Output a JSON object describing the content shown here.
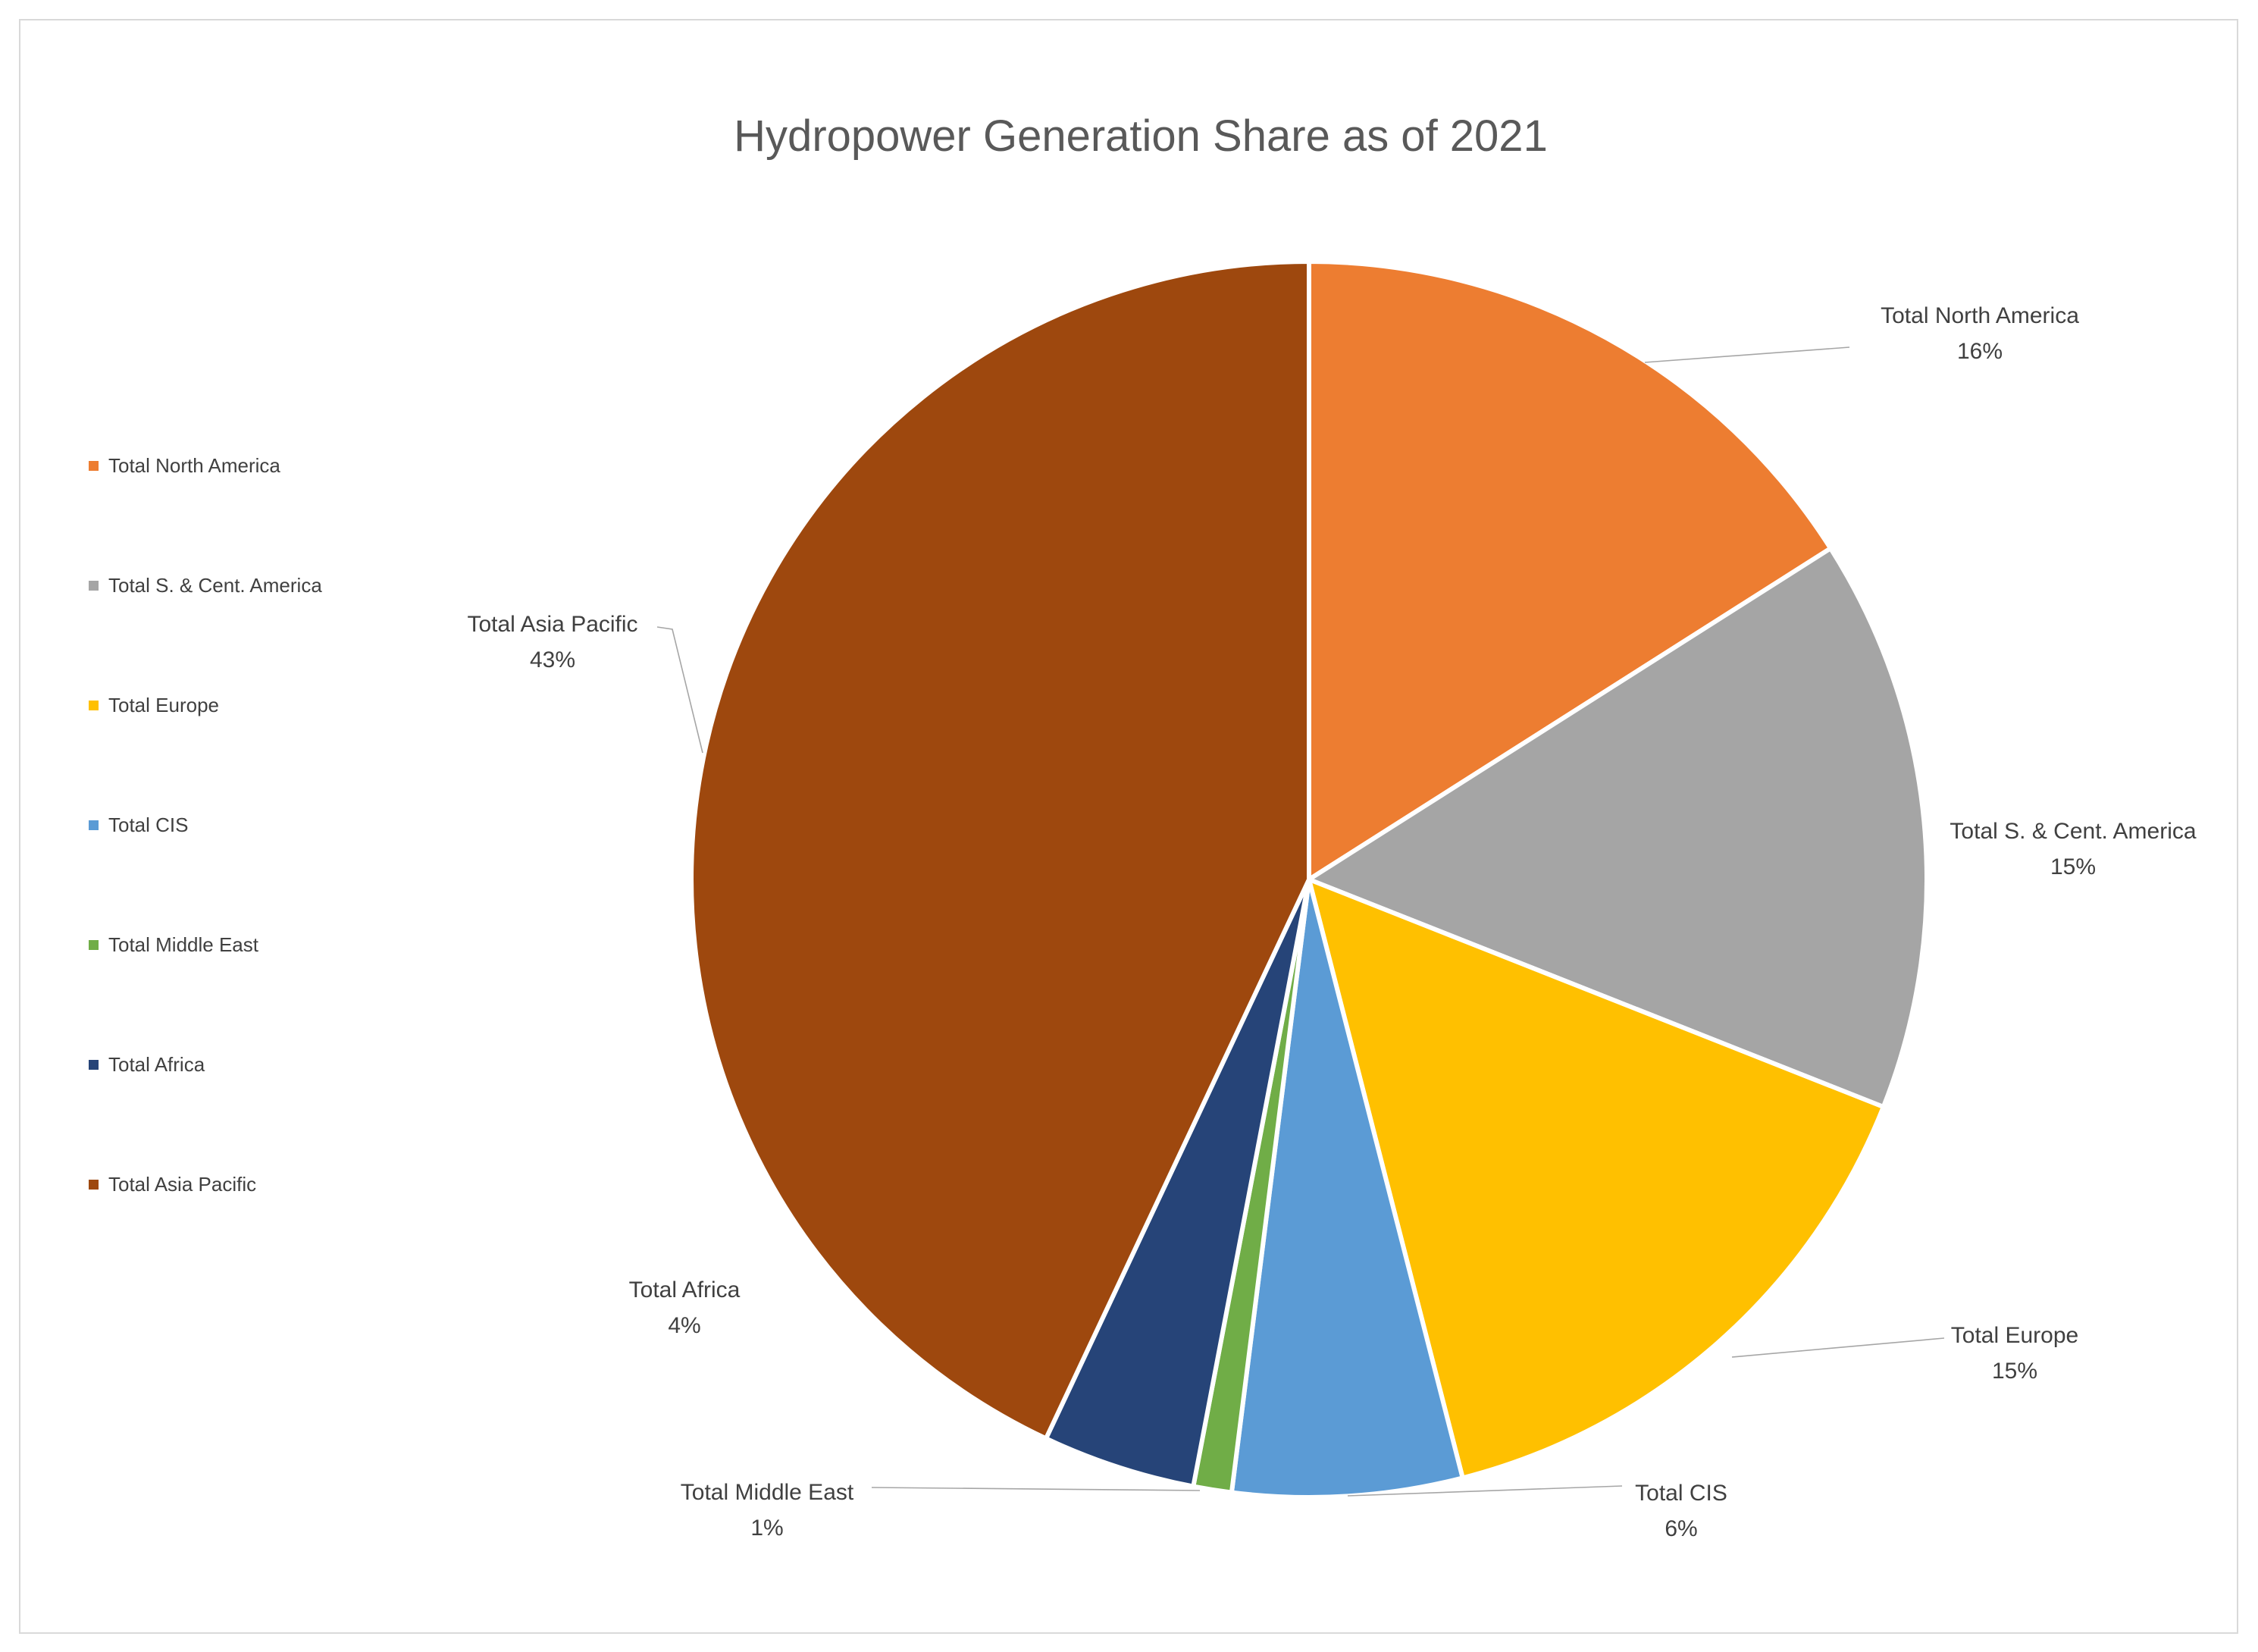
{
  "chart": {
    "title": "Hydropower Generation Share as of 2021"
  },
  "chart_data": {
    "type": "pie",
    "title": "Hydropower Generation Share as of 2021",
    "categories": [
      "Total North America",
      "Total S. & Cent. America",
      "Total Europe",
      "Total CIS",
      "Total Middle East",
      "Total Africa",
      "Total Asia Pacific"
    ],
    "values": [
      16,
      15,
      15,
      6,
      1,
      4,
      43
    ],
    "value_labels": [
      "16%",
      "15%",
      "15%",
      "6%",
      "1%",
      "4%",
      "43%"
    ],
    "colors": [
      "#ED7D31",
      "#A5A5A5",
      "#FFC000",
      "#5B9BD5",
      "#70AD47",
      "#264478",
      "#9E480E"
    ],
    "slice_border_color": "#FFFFFF",
    "leader_line_color": "#A6A6A6",
    "title_color": "#595959",
    "label_text_color": "#404040",
    "legend_position": "left",
    "data_label_style": "outside-end, category name and percentage",
    "start_angle_deg": 0,
    "direction": "clockwise"
  }
}
